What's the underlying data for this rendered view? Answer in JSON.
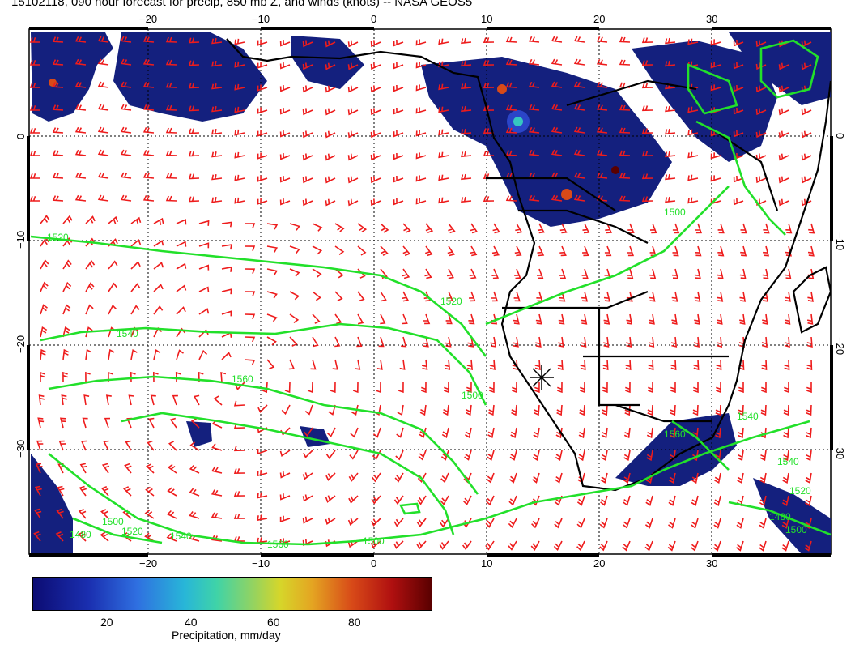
{
  "header": {
    "title": "15102118, 090 hour forecast for precip, 850 mb Z, and winds (knots) -- NASA GEOS5"
  },
  "map": {
    "lon_ticks": [
      "−20",
      "−10",
      "0",
      "10",
      "20",
      "30"
    ],
    "lat_ticks": [
      "0",
      "−10",
      "−20",
      "−30"
    ],
    "contour_labels": [
      "1520",
      "1540",
      "1560",
      "1520",
      "1500",
      "1540",
      "1560",
      "1520",
      "1500",
      "1480",
      "1500",
      "1540",
      "1480",
      "1500",
      "1520",
      "1540",
      "1560",
      "1500"
    ],
    "colors": {
      "contour": "#22e02a",
      "barb": "#ee1c1c",
      "precip_dark": "#101a78",
      "precip_mid": "#2b45c8",
      "coast": "#000000"
    }
  },
  "colorbar": {
    "ticks": [
      "20",
      "40",
      "60",
      "80"
    ],
    "label": "Precipitation, mm/day"
  }
}
